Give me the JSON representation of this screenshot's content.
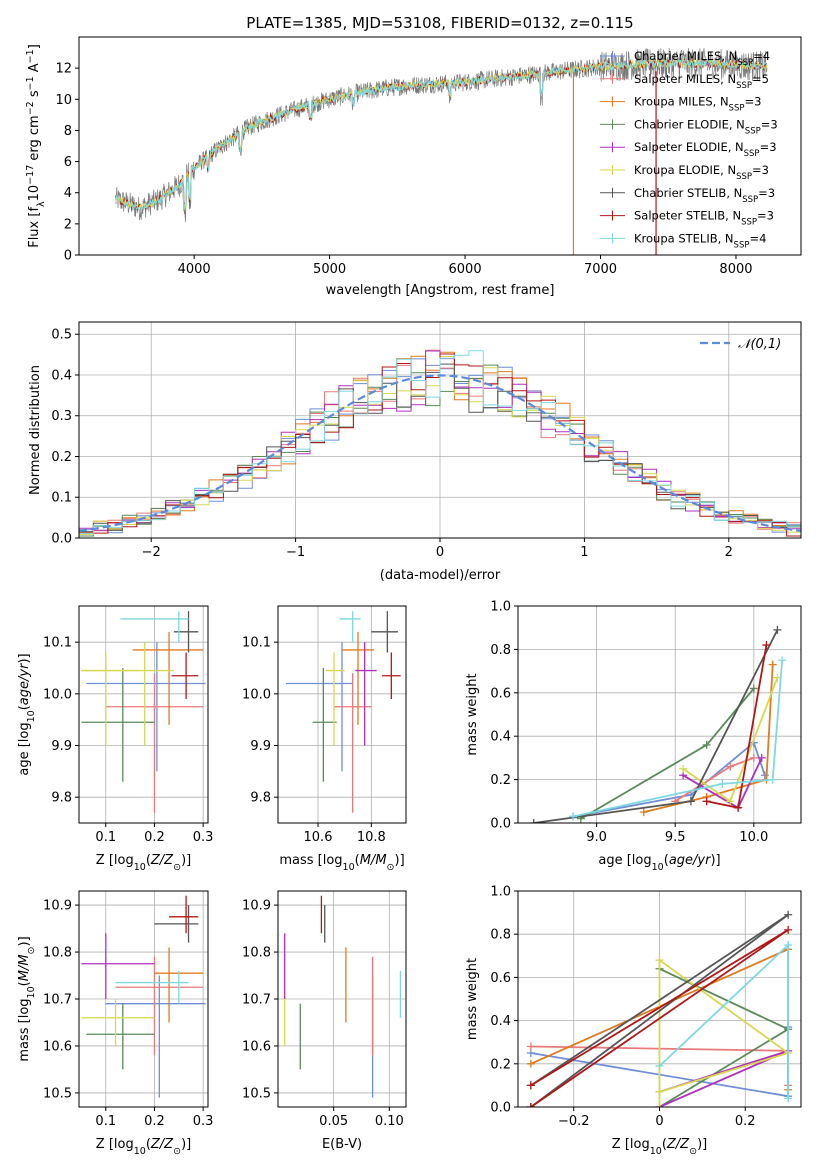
{
  "title": "PLATE=1385, MJD=53108, FIBERID=0132, z=0.115",
  "colors": {
    "chabrier_miles": "#6f8fd6",
    "salpeter_miles": "#e87a7a",
    "kroupa_miles": "#e07b20",
    "chabrier_elodie": "#5a8a5a",
    "salpeter_elodie": "#b030c0",
    "kroupa_elodie": "#d8d850",
    "chabrier_stelib": "#555555",
    "salpeter_stelib": "#b01818",
    "kroupa_stelib": "#7fd8e0",
    "spectrum": "#7a7a7a",
    "normal_curve": "#5b8bd8",
    "grid": "#b0b0b0"
  },
  "legend": [
    {
      "label": "Chabrier MILES, N",
      "sub": "SSP",
      "suffix": "=4",
      "color": "#6f8fd6"
    },
    {
      "label": "Salpeter MILES, N",
      "sub": "SSP",
      "suffix": "=5",
      "color": "#e87a7a"
    },
    {
      "label": "Kroupa MILES, N",
      "sub": "SSP",
      "suffix": "=3",
      "color": "#e07b20"
    },
    {
      "label": "Chabrier ELODIE, N",
      "sub": "SSP",
      "suffix": "=3",
      "color": "#5a8a5a"
    },
    {
      "label": "Salpeter ELODIE, N",
      "sub": "SSP",
      "suffix": "=3",
      "color": "#b030c0"
    },
    {
      "label": "Kroupa ELODIE, N",
      "sub": "SSP",
      "suffix": "=3",
      "color": "#d8d850"
    },
    {
      "label": "Chabrier STELIB, N",
      "sub": "SSP",
      "suffix": "=3",
      "color": "#555555"
    },
    {
      "label": "Salpeter STELIB, N",
      "sub": "SSP",
      "suffix": "=3",
      "color": "#b01818"
    },
    {
      "label": "Kroupa STELIB, N",
      "sub": "SSP",
      "suffix": "=4",
      "color": "#7fd8e0"
    }
  ],
  "chart_data": [
    {
      "type": "line",
      "id": "spectrum",
      "xlabel": "wavelength [Angstrom, rest frame]",
      "ylabel": "Flux [f_λ10^-17 erg cm^-2 s^-1 A^-1]",
      "xlim": [
        3150,
        8480
      ],
      "ylim": [
        0,
        14
      ],
      "xticks": [
        4000,
        5000,
        6000,
        7000,
        8000
      ],
      "yticks": [
        0,
        2,
        4,
        6,
        8,
        10,
        12
      ],
      "continuum_x": [
        3420,
        3600,
        3750,
        3900,
        4000,
        4200,
        4400,
        4600,
        4800,
        5000,
        5200,
        5400,
        5600,
        5800,
        6000,
        6200,
        6400,
        6600,
        6800,
        7000,
        7200,
        7400,
        7600,
        7800,
        8000,
        8230
      ],
      "continuum_y": [
        3.6,
        3.0,
        3.6,
        4.6,
        5.6,
        7.0,
        8.2,
        8.9,
        9.5,
        10.0,
        10.4,
        10.7,
        10.9,
        11.0,
        11.1,
        11.3,
        11.5,
        11.7,
        11.9,
        12.1,
        12.2,
        12.3,
        12.3,
        12.3,
        12.2,
        12.1
      ]
    },
    {
      "type": "line",
      "id": "residuals",
      "xlabel": "(data-model)/error",
      "ylabel": "Normed distribution",
      "xlim": [
        -2.5,
        2.5
      ],
      "ylim": [
        0,
        0.53
      ],
      "xticks": [
        -2,
        -1,
        0,
        1,
        2
      ],
      "yticks": [
        0.0,
        0.1,
        0.2,
        0.3,
        0.4,
        0.5
      ],
      "series": [
        {
          "name": "𝒩(0,1)",
          "mu": 0,
          "sigma": 1
        }
      ],
      "hist_edges": [
        -2.5,
        2.5
      ],
      "hist_bins": 50
    },
    {
      "type": "scatter",
      "id": "age_vs_Z",
      "xlabel": "Z [log10(Z/Z⊙)]",
      "ylabel": "age [log10(age/yr)]",
      "xlim": [
        0.045,
        0.31
      ],
      "ylim": [
        9.75,
        10.17
      ],
      "xticks": [
        0.1,
        0.2,
        0.3
      ],
      "yticks": [
        9.8,
        9.9,
        10.0,
        10.1
      ],
      "points": [
        {
          "x": 0.205,
          "y": 10.02,
          "xe": [
            0.06,
            0.305
          ],
          "ye": [
            9.85,
            10.1
          ],
          "c": "chabrier_miles"
        },
        {
          "x": 0.2,
          "y": 9.975,
          "xe": [
            0.1,
            0.3
          ],
          "ye": [
            9.77,
            10.04
          ],
          "c": "salpeter_miles"
        },
        {
          "x": 0.23,
          "y": 10.085,
          "xe": [
            0.155,
            0.3
          ],
          "ye": [
            9.94,
            10.12
          ],
          "c": "kroupa_miles"
        },
        {
          "x": 0.135,
          "y": 9.945,
          "xe": [
            0.05,
            0.2
          ],
          "ye": [
            9.83,
            10.05
          ],
          "c": "chabrier_elodie"
        },
        {
          "x": 0.18,
          "y": 10.045,
          "xe": [
            0.05,
            0.24
          ],
          "ye": [
            9.9,
            10.1
          ],
          "c": "kroupa_elodie"
        },
        {
          "x": 0.1,
          "y": 10.045,
          "xe": [
            0.05,
            0.165
          ],
          "ye": [
            9.9,
            10.08
          ],
          "c": "kroupa_elodie"
        },
        {
          "x": 0.27,
          "y": 10.12,
          "xe": [
            0.24,
            0.29
          ],
          "ye": [
            10.08,
            10.16
          ],
          "c": "chabrier_stelib"
        },
        {
          "x": 0.265,
          "y": 10.035,
          "xe": [
            0.235,
            0.29
          ],
          "ye": [
            9.99,
            10.08
          ],
          "c": "salpeter_stelib"
        },
        {
          "x": 0.25,
          "y": 10.145,
          "xe": [
            0.13,
            0.27
          ],
          "ye": [
            10.1,
            10.16
          ],
          "c": "kroupa_stelib"
        }
      ]
    },
    {
      "type": "scatter",
      "id": "age_vs_mass",
      "xlabel": "mass [log10(M/M⊙)]",
      "ylabel": "",
      "xlim": [
        10.45,
        10.93
      ],
      "ylim": [
        9.75,
        10.17
      ],
      "xticks": [
        10.6,
        10.8
      ],
      "yticks": [
        9.8,
        9.9,
        10.0,
        10.1
      ],
      "points": [
        {
          "x": 10.69,
          "y": 10.02,
          "xe": [
            10.48,
            10.73
          ],
          "ye": [
            9.85,
            10.1
          ],
          "c": "chabrier_miles"
        },
        {
          "x": 10.73,
          "y": 9.975,
          "xe": [
            10.66,
            10.8
          ],
          "ye": [
            9.77,
            10.04
          ],
          "c": "salpeter_miles"
        },
        {
          "x": 10.75,
          "y": 10.085,
          "xe": [
            10.69,
            10.81
          ],
          "ye": [
            9.94,
            10.12
          ],
          "c": "kroupa_miles"
        },
        {
          "x": 10.62,
          "y": 9.945,
          "xe": [
            10.58,
            10.67
          ],
          "ye": [
            9.83,
            10.05
          ],
          "c": "chabrier_elodie"
        },
        {
          "x": 10.775,
          "y": 10.045,
          "xe": [
            10.74,
            10.82
          ],
          "ye": [
            9.9,
            10.1
          ],
          "c": "salpeter_elodie"
        },
        {
          "x": 10.66,
          "y": 10.045,
          "xe": [
            10.63,
            10.7
          ],
          "ye": [
            9.9,
            10.08
          ],
          "c": "kroupa_elodie"
        },
        {
          "x": 10.86,
          "y": 10.12,
          "xe": [
            10.8,
            10.9
          ],
          "ye": [
            10.08,
            10.16
          ],
          "c": "chabrier_stelib"
        },
        {
          "x": 10.875,
          "y": 10.035,
          "xe": [
            10.84,
            10.91
          ],
          "ye": [
            9.99,
            10.08
          ],
          "c": "salpeter_stelib"
        },
        {
          "x": 10.73,
          "y": 10.145,
          "xe": [
            10.68,
            10.76
          ],
          "ye": [
            10.1,
            10.16
          ],
          "c": "kroupa_stelib"
        }
      ]
    },
    {
      "type": "line",
      "id": "massweight_vs_age",
      "xlabel": "age [log10(age/yr)]",
      "ylabel": "mass weight",
      "xlim": [
        8.5,
        10.3
      ],
      "ylim": [
        0,
        1
      ],
      "xticks": [
        9.0,
        9.5,
        10.0
      ],
      "yticks": [
        0.0,
        0.2,
        0.4,
        0.6,
        0.8,
        1.0
      ],
      "series": [
        {
          "c": "chabrier_miles",
          "x": [
            8.85,
            9.6,
            10.0,
            10.07
          ],
          "y": [
            0.03,
            0.13,
            0.37,
            0.22
          ]
        },
        {
          "c": "salpeter_miles",
          "x": [
            9.5,
            9.85,
            10.0
          ],
          "y": [
            0.1,
            0.26,
            0.3
          ]
        },
        {
          "c": "kroupa_miles",
          "x": [
            9.3,
            9.7,
            10.08,
            10.12
          ],
          "y": [
            0.05,
            0.12,
            0.2,
            0.73
          ]
        },
        {
          "c": "chabrier_elodie",
          "x": [
            8.9,
            9.7,
            10.0
          ],
          "y": [
            0.02,
            0.36,
            0.62
          ]
        },
        {
          "c": "salpeter_elodie",
          "x": [
            9.55,
            9.9,
            10.05
          ],
          "y": [
            0.22,
            0.07,
            0.3
          ]
        },
        {
          "c": "kroupa_elodie",
          "x": [
            9.55,
            9.85,
            10.15
          ],
          "y": [
            0.25,
            0.1,
            0.67
          ]
        },
        {
          "c": "chabrier_stelib",
          "x": [
            8.6,
            9.6,
            10.15
          ],
          "y": [
            0.0,
            0.1,
            0.89
          ]
        },
        {
          "c": "salpeter_stelib",
          "x": [
            9.7,
            9.9,
            10.08
          ],
          "y": [
            0.1,
            0.07,
            0.82
          ]
        },
        {
          "c": "kroupa_stelib",
          "x": [
            8.85,
            9.8,
            10.12,
            10.18
          ],
          "y": [
            0.03,
            0.18,
            0.2,
            0.75
          ]
        }
      ]
    },
    {
      "type": "scatter",
      "id": "mass_vs_Z",
      "xlabel": "Z [log10(Z/Z⊙)]",
      "ylabel": "mass [log10(M/M⊙)]",
      "xlim": [
        0.045,
        0.31
      ],
      "ylim": [
        10.47,
        10.93
      ],
      "xticks": [
        0.1,
        0.2,
        0.3
      ],
      "yticks": [
        10.5,
        10.6,
        10.7,
        10.8,
        10.9
      ],
      "points": [
        {
          "x": 0.21,
          "y": 10.69,
          "xe": [
            0.1,
            0.305
          ],
          "ye": [
            10.49,
            10.75
          ],
          "c": "chabrier_miles"
        },
        {
          "x": 0.2,
          "y": 10.725,
          "xe": [
            0.12,
            0.3
          ],
          "ye": [
            10.58,
            10.79
          ],
          "c": "salpeter_miles"
        },
        {
          "x": 0.23,
          "y": 10.755,
          "xe": [
            0.2,
            0.3
          ],
          "ye": [
            10.65,
            10.81
          ],
          "c": "kroupa_miles"
        },
        {
          "x": 0.135,
          "y": 10.625,
          "xe": [
            0.06,
            0.2
          ],
          "ye": [
            10.55,
            10.69
          ],
          "c": "chabrier_elodie"
        },
        {
          "x": 0.1,
          "y": 10.775,
          "xe": [
            0.05,
            0.2
          ],
          "ye": [
            10.7,
            10.84
          ],
          "c": "salpeter_elodie"
        },
        {
          "x": 0.12,
          "y": 10.66,
          "xe": [
            0.05,
            0.2
          ],
          "ye": [
            10.6,
            10.7
          ],
          "c": "kroupa_elodie"
        },
        {
          "x": 0.27,
          "y": 10.86,
          "xe": [
            0.2,
            0.29
          ],
          "ye": [
            10.82,
            10.9
          ],
          "c": "chabrier_stelib"
        },
        {
          "x": 0.265,
          "y": 10.875,
          "xe": [
            0.23,
            0.29
          ],
          "ye": [
            10.84,
            10.92
          ],
          "c": "salpeter_stelib"
        },
        {
          "x": 0.25,
          "y": 10.735,
          "xe": [
            0.12,
            0.27
          ],
          "ye": [
            10.69,
            10.76
          ],
          "c": "kroupa_stelib"
        }
      ]
    },
    {
      "type": "scatter",
      "id": "mass_vs_ebv",
      "xlabel": "E(B-V)",
      "ylabel": "",
      "xlim": [
        0.0,
        0.115
      ],
      "ylim": [
        10.47,
        10.93
      ],
      "xticks": [
        0.05,
        0.1
      ],
      "yticks": [
        10.5,
        10.6,
        10.7,
        10.8,
        10.9
      ],
      "points": [
        {
          "x": 0.085,
          "y": 10.69,
          "ye": [
            10.49,
            10.75
          ],
          "c": "chabrier_miles"
        },
        {
          "x": 0.085,
          "y": 10.725,
          "ye": [
            10.58,
            10.79
          ],
          "c": "salpeter_miles"
        },
        {
          "x": 0.061,
          "y": 10.755,
          "ye": [
            10.65,
            10.81
          ],
          "c": "kroupa_miles"
        },
        {
          "x": 0.02,
          "y": 10.625,
          "ye": [
            10.55,
            10.69
          ],
          "c": "chabrier_elodie"
        },
        {
          "x": 0.006,
          "y": 10.775,
          "ye": [
            10.7,
            10.84
          ],
          "c": "salpeter_elodie"
        },
        {
          "x": 0.006,
          "y": 10.66,
          "ye": [
            10.6,
            10.7
          ],
          "c": "kroupa_elodie"
        },
        {
          "x": 0.042,
          "y": 10.86,
          "ye": [
            10.82,
            10.9
          ],
          "c": "chabrier_stelib"
        },
        {
          "x": 0.039,
          "y": 10.875,
          "ye": [
            10.84,
            10.92
          ],
          "c": "salpeter_stelib"
        },
        {
          "x": 0.11,
          "y": 10.735,
          "ye": [
            10.66,
            10.76
          ],
          "c": "kroupa_stelib"
        }
      ]
    },
    {
      "type": "line",
      "id": "massweight_vs_Z",
      "xlabel": "Z [log10(Z/Z⊙)]",
      "ylabel": "mass weight",
      "xlim": [
        -0.33,
        0.33
      ],
      "ylim": [
        0,
        1
      ],
      "xticks": [
        -0.2,
        0.0,
        0.2
      ],
      "yticks": [
        0.0,
        0.2,
        0.4,
        0.6,
        0.8,
        1.0
      ],
      "series": [
        {
          "c": "chabrier_miles",
          "x": [
            -0.3,
            0.3,
            0.3
          ],
          "y": [
            0.25,
            0.05,
            0.37
          ]
        },
        {
          "c": "salpeter_miles",
          "x": [
            -0.3,
            0.3,
            0.3
          ],
          "y": [
            0.28,
            0.26,
            0.1
          ]
        },
        {
          "c": "kroupa_miles",
          "x": [
            -0.3,
            0.3,
            0.3
          ],
          "y": [
            0.2,
            0.73,
            0.08
          ]
        },
        {
          "c": "chabrier_elodie",
          "x": [
            0.0,
            0.3,
            0.0
          ],
          "y": [
            0.64,
            0.36,
            0.0
          ]
        },
        {
          "c": "salpeter_elodie",
          "x": [
            0.0,
            0.3,
            0.0
          ],
          "y": [
            0.07,
            0.26,
            0.0
          ]
        },
        {
          "c": "kroupa_elodie",
          "x": [
            0.0,
            0.3,
            0.0,
            0.0
          ],
          "y": [
            0.07,
            0.25,
            0.68,
            0.0
          ]
        },
        {
          "c": "chabrier_stelib",
          "x": [
            -0.3,
            0.3,
            -0.3
          ],
          "y": [
            0.0,
            0.89,
            0.1
          ]
        },
        {
          "c": "salpeter_stelib",
          "x": [
            -0.3,
            0.3,
            -0.3
          ],
          "y": [
            0.1,
            0.82,
            0.0
          ]
        },
        {
          "c": "kroupa_stelib",
          "x": [
            0.0,
            0.3,
            0.3
          ],
          "y": [
            0.19,
            0.75,
            0.04
          ]
        }
      ]
    }
  ]
}
